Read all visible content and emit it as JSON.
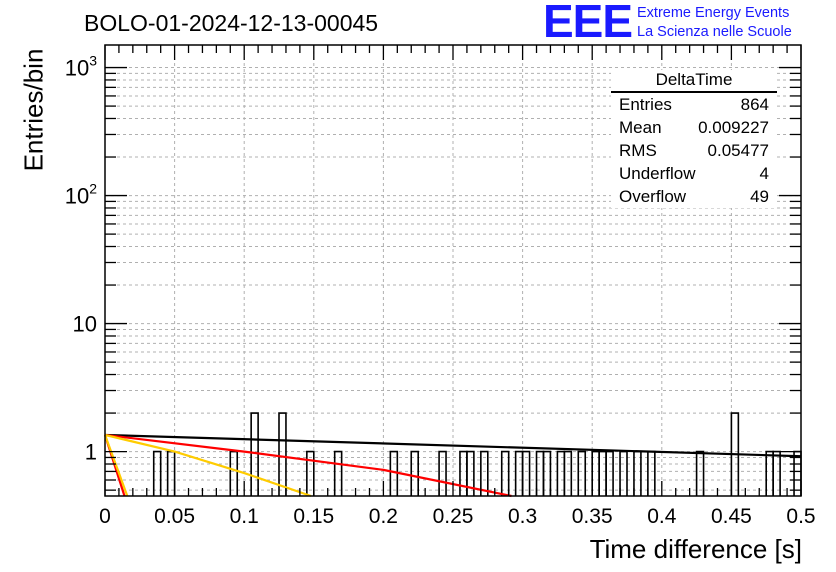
{
  "title": "BOLO-01-2024-12-13-00045",
  "logo": {
    "mark": "EEE",
    "line1": "Extreme Energy Events",
    "line2": "La Scienza nelle Scuole"
  },
  "stats_box": {
    "title": "DeltaTime",
    "rows": [
      {
        "label": "Entries",
        "value": "864"
      },
      {
        "label": "Mean",
        "value": "0.009227"
      },
      {
        "label": "RMS",
        "value": "0.05477"
      },
      {
        "label": "Underflow",
        "value": "4"
      },
      {
        "label": "Overflow",
        "value": "49"
      }
    ]
  },
  "chart_data": {
    "type": "bar",
    "title": "BOLO-01-2024-12-13-00045",
    "xlabel": "Time difference [s]",
    "ylabel": "Entries/bin",
    "x_scale": "linear",
    "y_scale": "log",
    "xlim": [
      0,
      0.5
    ],
    "ylim": [
      0.45,
      1500
    ],
    "grid": true,
    "x_ticks": [
      "0",
      "0.05",
      "0.1",
      "0.15",
      "0.2",
      "0.25",
      "0.3",
      "0.35",
      "0.4",
      "0.45",
      "0.5"
    ],
    "y_ticks": [
      "1",
      "10",
      "10^2",
      "10^3"
    ],
    "bin_width": 0.005,
    "bins": [
      {
        "x": 0.035,
        "y": 1
      },
      {
        "x": 0.045,
        "y": 1
      },
      {
        "x": 0.09,
        "y": 1
      },
      {
        "x": 0.105,
        "y": 2
      },
      {
        "x": 0.125,
        "y": 2
      },
      {
        "x": 0.145,
        "y": 1
      },
      {
        "x": 0.165,
        "y": 1
      },
      {
        "x": 0.205,
        "y": 1
      },
      {
        "x": 0.22,
        "y": 1
      },
      {
        "x": 0.24,
        "y": 1
      },
      {
        "x": 0.255,
        "y": 1
      },
      {
        "x": 0.26,
        "y": 1
      },
      {
        "x": 0.27,
        "y": 1
      },
      {
        "x": 0.285,
        "y": 1
      },
      {
        "x": 0.295,
        "y": 1
      },
      {
        "x": 0.3,
        "y": 1
      },
      {
        "x": 0.31,
        "y": 1
      },
      {
        "x": 0.315,
        "y": 1
      },
      {
        "x": 0.325,
        "y": 1
      },
      {
        "x": 0.33,
        "y": 1
      },
      {
        "x": 0.34,
        "y": 1
      },
      {
        "x": 0.35,
        "y": 1
      },
      {
        "x": 0.355,
        "y": 1
      },
      {
        "x": 0.36,
        "y": 1
      },
      {
        "x": 0.37,
        "y": 1
      },
      {
        "x": 0.38,
        "y": 1
      },
      {
        "x": 0.39,
        "y": 1
      },
      {
        "x": 0.425,
        "y": 1
      },
      {
        "x": 0.45,
        "y": 2
      },
      {
        "x": 0.475,
        "y": 1
      },
      {
        "x": 0.48,
        "y": 1
      },
      {
        "x": 0.495,
        "y": 1
      }
    ],
    "fit_lines": [
      {
        "color": "#000000",
        "points": [
          [
            0,
            1.35
          ],
          [
            0.5,
            0.92
          ]
        ]
      },
      {
        "color": "#ff0000",
        "points": [
          [
            0,
            1.35
          ],
          [
            0.1,
            1.0
          ],
          [
            0.2,
            0.72
          ],
          [
            0.292,
            0.45
          ]
        ]
      },
      {
        "color": "#ffcc00",
        "points": [
          [
            0,
            1.35
          ],
          [
            0.05,
            1.0
          ],
          [
            0.1,
            0.68
          ],
          [
            0.148,
            0.45
          ]
        ]
      },
      {
        "color": "#ff0000",
        "points": [
          [
            0,
            1.35
          ],
          [
            0.014,
            0.45
          ]
        ]
      },
      {
        "color": "#ffcc00",
        "points": [
          [
            0,
            1.35
          ],
          [
            0.016,
            0.45
          ]
        ]
      }
    ]
  }
}
